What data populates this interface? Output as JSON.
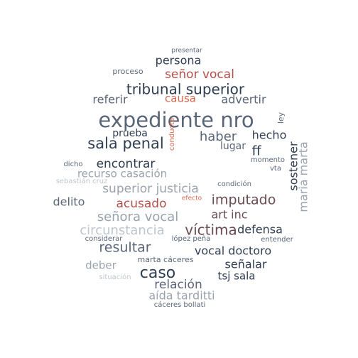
{
  "colors": {
    "dark_navy": "#2f3e52",
    "slate": "#5a6678",
    "gray": "#9aa3ad",
    "light_gray": "#bfc5cc",
    "red": "#b4504a",
    "salmon": "#d9674e",
    "maroon": "#6b4a50"
  },
  "words": [
    {
      "text": "presentar",
      "color": "slate"
    },
    {
      "text": "persona",
      "color": "dark_navy"
    },
    {
      "text": "proceso",
      "color": "slate"
    },
    {
      "text": "señor vocal",
      "color": "red"
    },
    {
      "text": "tribunal superior",
      "color": "dark_navy"
    },
    {
      "text": "referir",
      "color": "slate"
    },
    {
      "text": "causa",
      "color": "salmon"
    },
    {
      "text": "advertir",
      "color": "slate"
    },
    {
      "text": "expediente nro",
      "color": "slate"
    },
    {
      "text": "ley",
      "color": "slate"
    },
    {
      "text": "conducta",
      "color": "salmon"
    },
    {
      "text": "sala penal",
      "color": "dark_navy"
    },
    {
      "text": "prueba",
      "color": "dark_navy"
    },
    {
      "text": "haber",
      "color": "slate"
    },
    {
      "text": "hecho",
      "color": "dark_navy"
    },
    {
      "text": "ff",
      "color": "dark_navy"
    },
    {
      "text": "lugar",
      "color": "slate"
    },
    {
      "text": "encontrar",
      "color": "dark_navy"
    },
    {
      "text": "dicho",
      "color": "slate"
    },
    {
      "text": "momento",
      "color": "slate"
    },
    {
      "text": "vta",
      "color": "slate"
    },
    {
      "text": "recurso casación",
      "color": "gray"
    },
    {
      "text": "sostener",
      "color": "dark_navy"
    },
    {
      "text": "maria marta",
      "color": "gray"
    },
    {
      "text": "sebastián cruz",
      "color": "light_gray"
    },
    {
      "text": "superior justicia",
      "color": "gray"
    },
    {
      "text": "condición",
      "color": "slate"
    },
    {
      "text": "acusado",
      "color": "red"
    },
    {
      "text": "efecto",
      "color": "salmon"
    },
    {
      "text": "imputado",
      "color": "maroon"
    },
    {
      "text": "delito",
      "color": "slate"
    },
    {
      "text": "señora vocal",
      "color": "gray"
    },
    {
      "text": "art inc",
      "color": "maroon"
    },
    {
      "text": "circunstancia",
      "color": "light_gray"
    },
    {
      "text": "víctima",
      "color": "maroon"
    },
    {
      "text": "defensa",
      "color": "dark_navy"
    },
    {
      "text": "considerar",
      "color": "slate"
    },
    {
      "text": "lópez peña",
      "color": "slate"
    },
    {
      "text": "entender",
      "color": "slate"
    },
    {
      "text": "resultar",
      "color": "slate"
    },
    {
      "text": "vocal doctoro",
      "color": "dark_navy"
    },
    {
      "text": "marta cáceres",
      "color": "slate"
    },
    {
      "text": "deber",
      "color": "gray"
    },
    {
      "text": "caso",
      "color": "dark_navy"
    },
    {
      "text": "señalar",
      "color": "dark_navy"
    },
    {
      "text": "tsj sala",
      "color": "dark_navy"
    },
    {
      "text": "situación",
      "color": "light_gray"
    },
    {
      "text": "relación",
      "color": "slate"
    },
    {
      "text": "aída tarditti",
      "color": "gray"
    },
    {
      "text": "cáceres bollati",
      "color": "slate"
    }
  ]
}
